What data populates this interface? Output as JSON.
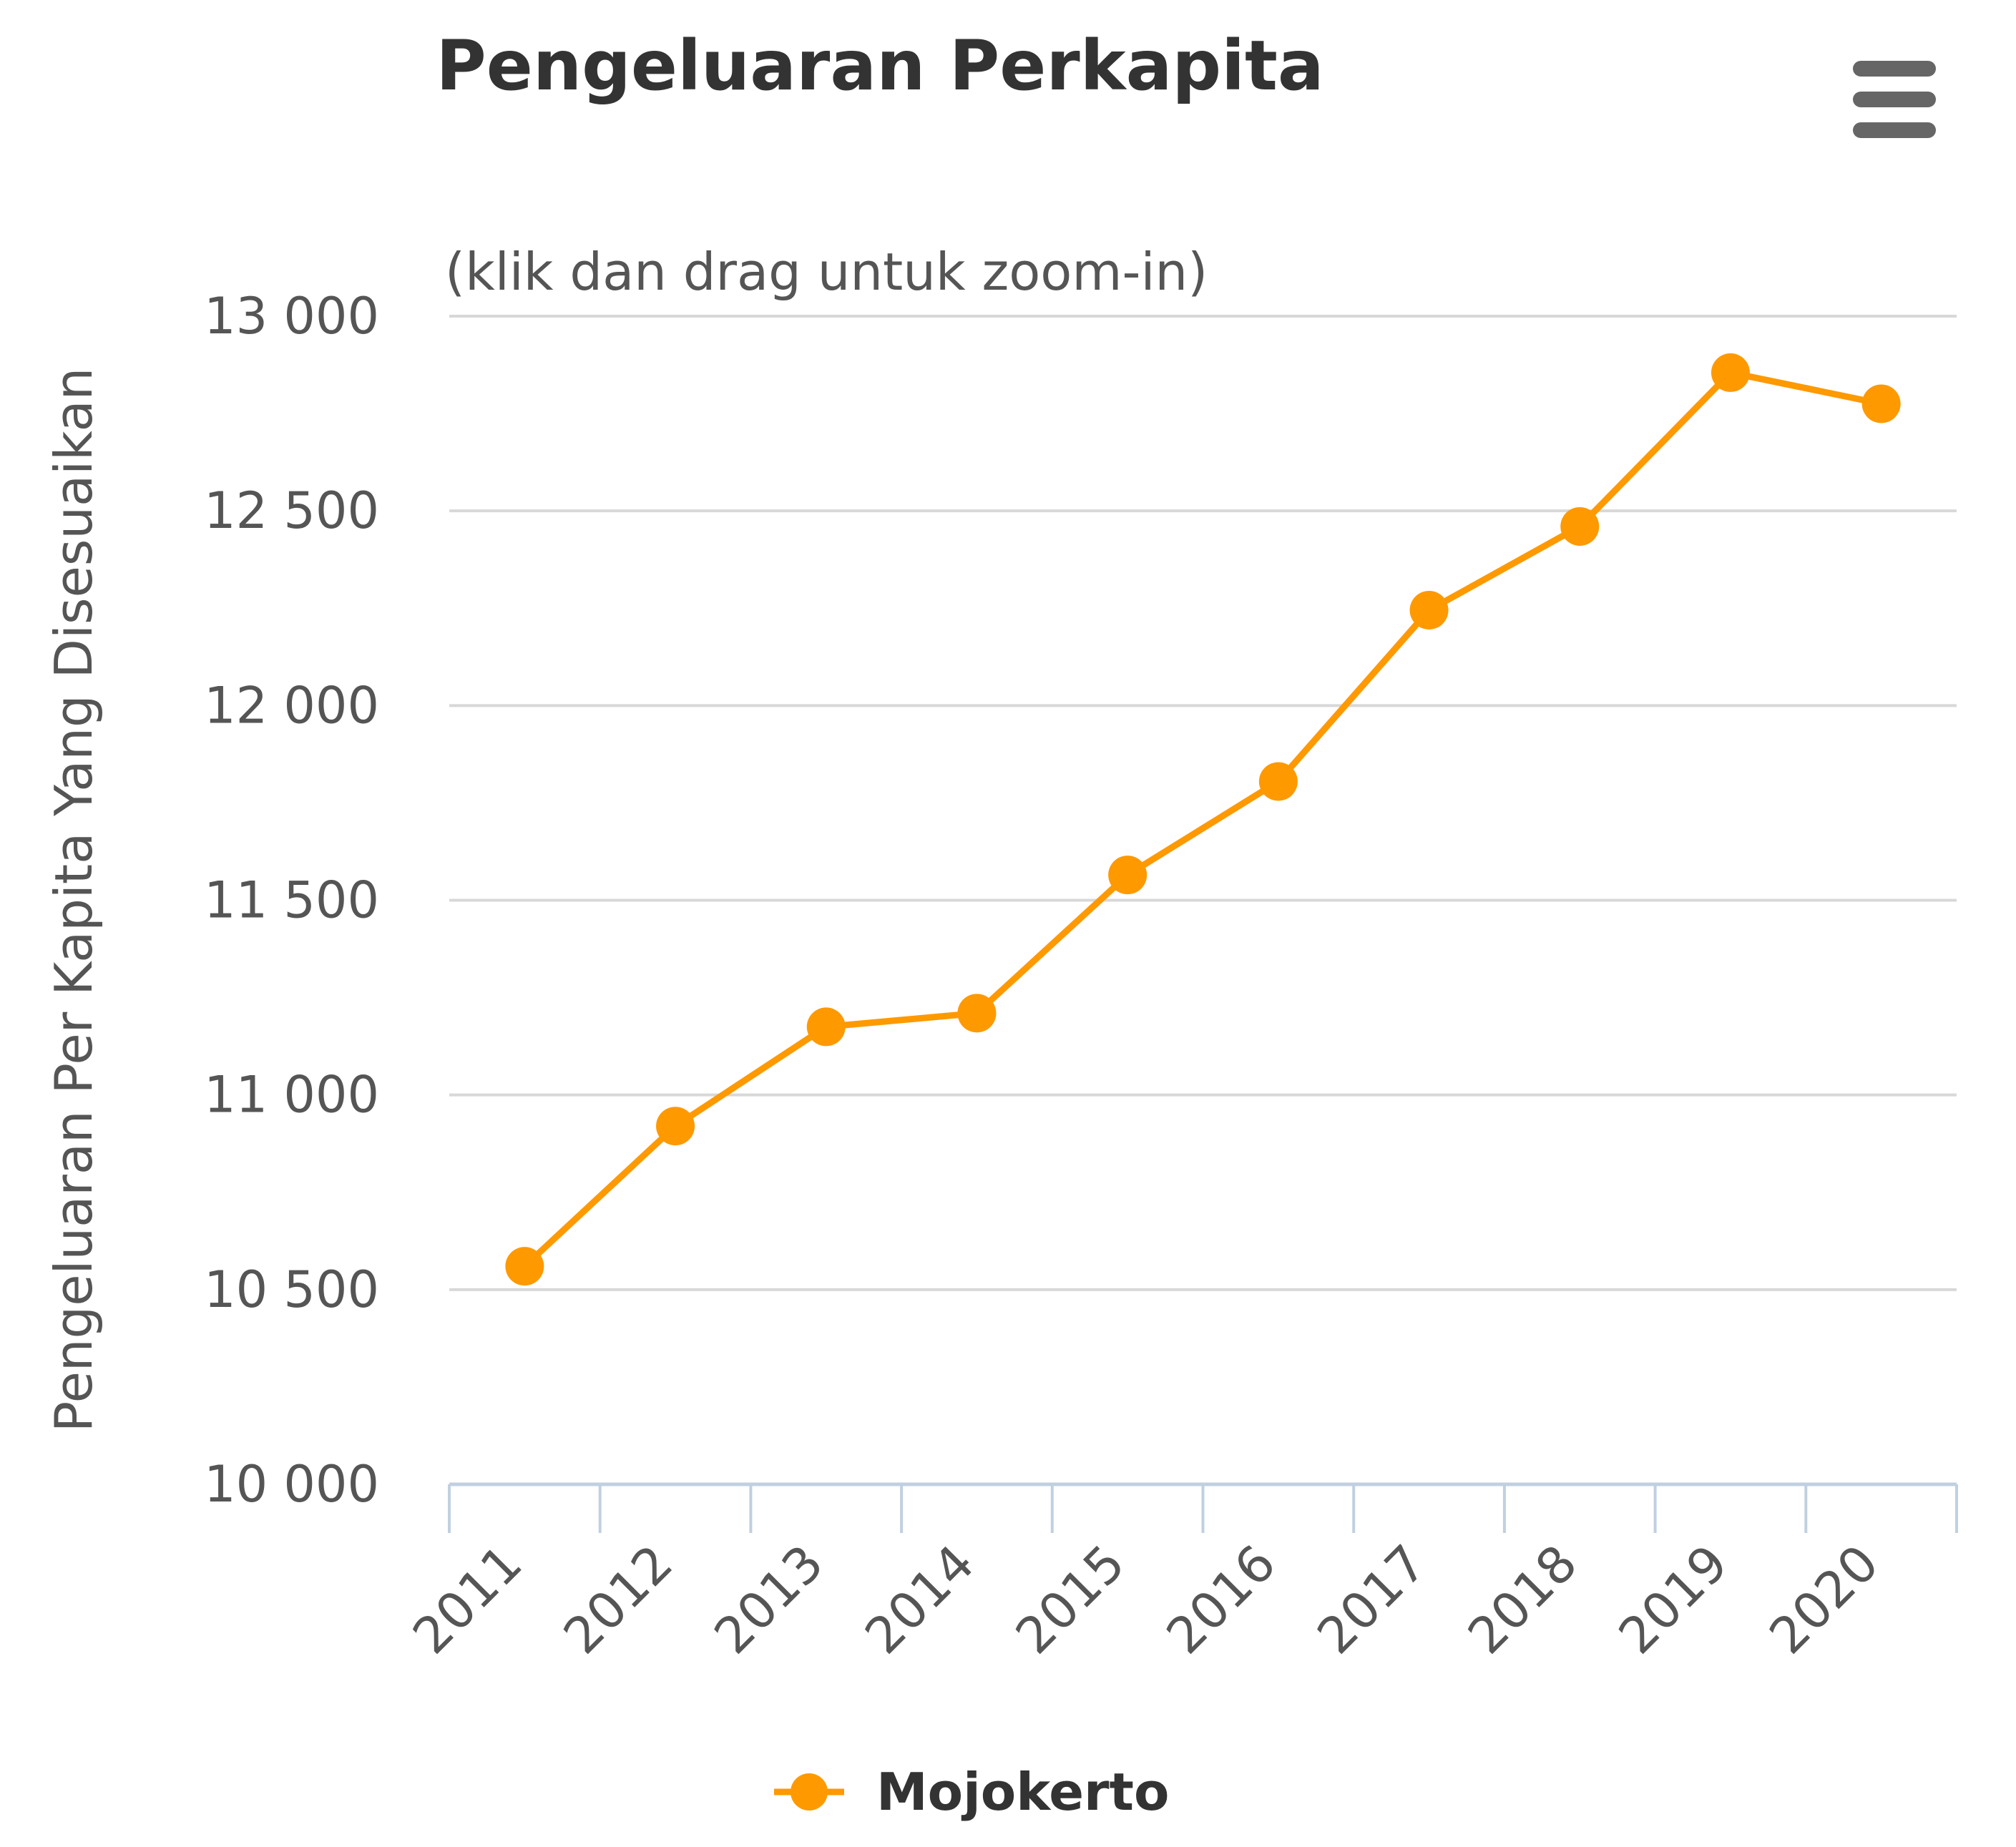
{
  "chart_data": {
    "type": "line",
    "title": "Pengeluaran Perkapita",
    "subtitle": "(klik dan drag untuk zoom-in)",
    "xlabel": "",
    "ylabel": "Pengeluaran Per Kapita Yang Disesuaikan",
    "categories": [
      "2011",
      "2012",
      "2013",
      "2014",
      "2015",
      "2016",
      "2017",
      "2018",
      "2019",
      "2020"
    ],
    "ylim": [
      10000,
      13000
    ],
    "yticks": [
      10000,
      10500,
      11000,
      11500,
      12000,
      12500,
      13000
    ],
    "ytick_labels": [
      "10 000",
      "10 500",
      "11 000",
      "11 500",
      "12 000",
      "12 500",
      "13 000"
    ],
    "grid": true,
    "legend": "bottom-center",
    "series": [
      {
        "name": "Mojokerto",
        "color": "#ff9900",
        "values": [
          10560,
          10920,
          11175,
          11210,
          11565,
          11805,
          12245,
          12460,
          12855,
          12775
        ]
      }
    ]
  },
  "menu": {
    "icon": "menu-icon"
  }
}
